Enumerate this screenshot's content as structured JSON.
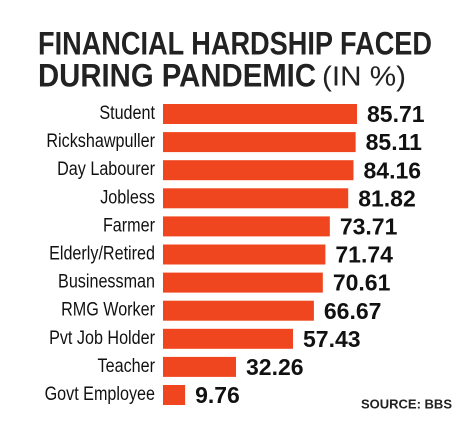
{
  "chart_data": {
    "type": "hbar",
    "title": [
      "FINANCIAL HARDSHIP FACED",
      "DURING PANDEMIC"
    ],
    "subtitle": "(IN %)",
    "source": "SOURCE: BBS",
    "categories": [
      "Student",
      "Rickshawpuller",
      "Day Labourer",
      "Jobless",
      "Farmer",
      "Elderly/Retired",
      "Businessman",
      "RMG Worker",
      "Pvt Job Holder",
      "Teacher",
      "Govt Employee"
    ],
    "values": [
      85.71,
      85.11,
      84.16,
      81.82,
      73.71,
      71.74,
      70.61,
      66.67,
      57.43,
      32.26,
      9.76
    ],
    "color": "#f0461f"
  }
}
